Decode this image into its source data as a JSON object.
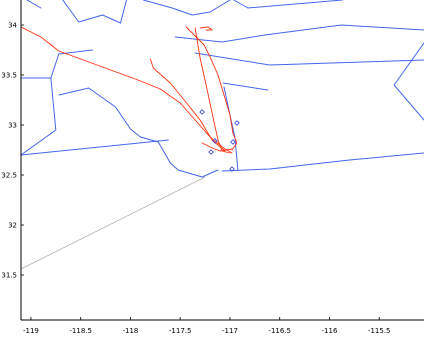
{
  "chart_data": {
    "type": "line",
    "title": "",
    "xlabel": "",
    "ylabel": "",
    "xlim": [
      -119.1,
      -115.05
    ],
    "ylim": [
      31.05,
      34.25
    ],
    "grid": false,
    "x_ticks": [
      {
        "value": -119,
        "label": "-119"
      },
      {
        "value": -118.5,
        "label": "-118.5"
      },
      {
        "value": -118,
        "label": "-118"
      },
      {
        "value": -117.5,
        "label": "-117.5"
      },
      {
        "value": -117,
        "label": "-117"
      },
      {
        "value": -116.5,
        "label": "-116.5"
      },
      {
        "value": -116,
        "label": "-116"
      },
      {
        "value": -115.5,
        "label": "-115.5"
      }
    ],
    "y_ticks": [
      {
        "value": 34,
        "label": "34"
      },
      {
        "value": 33.5,
        "label": "33.5"
      },
      {
        "value": 33,
        "label": "33"
      },
      {
        "value": 32.5,
        "label": "32.5"
      },
      {
        "value": 32,
        "label": "32"
      },
      {
        "value": 31.5,
        "label": "31.5"
      }
    ],
    "colors": {
      "boundaries": "#4466ee",
      "tracks": "#ff3311",
      "markers": "#3344dd",
      "reference": "#b0b0b0",
      "axes": "#000000"
    },
    "reference_lines": [
      [
        [
          -119.1,
          31.56
        ],
        [
          -117.25,
          32.48
        ]
      ]
    ],
    "boundaries": [
      [
        [
          -118.68,
          34.25
        ],
        [
          -118.52,
          34.03
        ],
        [
          -118.28,
          34.1
        ],
        [
          -118.1,
          34.02
        ],
        [
          -118.04,
          34.25
        ]
      ],
      [
        [
          -119.04,
          34.25
        ],
        [
          -118.9,
          34.17
        ]
      ],
      [
        [
          -117.87,
          34.25
        ],
        [
          -117.58,
          34.17
        ],
        [
          -117.38,
          34.1
        ],
        [
          -117.2,
          34.13
        ],
        [
          -117.0,
          34.25
        ]
      ],
      [
        [
          -116.96,
          34.25
        ],
        [
          -116.82,
          34.17
        ],
        [
          -115.87,
          34.25
        ]
      ],
      [
        [
          -117.55,
          33.88
        ],
        [
          -117.08,
          33.83
        ],
        [
          -116.65,
          33.9
        ],
        [
          -115.88,
          34.0
        ],
        [
          -115.05,
          33.95
        ]
      ],
      [
        [
          -117.35,
          33.72
        ],
        [
          -116.6,
          33.6
        ],
        [
          -115.05,
          33.65
        ]
      ],
      [
        [
          -117.07,
          33.42
        ],
        [
          -116.62,
          33.35
        ]
      ],
      [
        [
          -115.05,
          33.82
        ],
        [
          -115.35,
          33.4
        ],
        [
          -115.05,
          33.05
        ]
      ],
      [
        [
          -119.1,
          33.47
        ],
        [
          -118.8,
          33.47
        ],
        [
          -118.72,
          33.71
        ],
        [
          -118.38,
          33.75
        ]
      ],
      [
        [
          -118.8,
          33.47
        ],
        [
          -118.75,
          32.95
        ],
        [
          -119.1,
          32.7
        ]
      ],
      [
        [
          -118.72,
          33.3
        ],
        [
          -118.42,
          33.37
        ],
        [
          -118.15,
          33.18
        ],
        [
          -118.0,
          32.96
        ],
        [
          -117.9,
          32.88
        ],
        [
          -117.72,
          32.83
        ],
        [
          -117.6,
          32.62
        ],
        [
          -117.52,
          32.55
        ],
        [
          -117.28,
          32.48
        ],
        [
          -117.12,
          32.55
        ]
      ],
      [
        [
          -119.1,
          32.7
        ],
        [
          -117.62,
          32.85
        ]
      ],
      [
        [
          -117.06,
          33.38
        ],
        [
          -117.0,
          33.1
        ],
        [
          -116.95,
          32.88
        ],
        [
          -116.92,
          32.55
        ]
      ],
      [
        [
          -117.08,
          32.54
        ],
        [
          -116.6,
          32.56
        ],
        [
          -115.8,
          32.65
        ],
        [
          -115.05,
          32.72
        ]
      ]
    ],
    "tracks": [
      [
        [
          -119.1,
          33.98
        ],
        [
          -118.9,
          33.88
        ],
        [
          -118.72,
          33.74
        ],
        [
          -118.5,
          33.66
        ],
        [
          -118.2,
          33.55
        ],
        [
          -117.95,
          33.46
        ],
        [
          -117.7,
          33.36
        ],
        [
          -117.5,
          33.22
        ],
        [
          -117.35,
          33.05
        ],
        [
          -117.2,
          32.88
        ],
        [
          -117.05,
          32.76
        ],
        [
          -116.98,
          32.72
        ]
      ],
      [
        [
          -117.8,
          33.66
        ],
        [
          -117.77,
          33.57
        ],
        [
          -117.6,
          33.42
        ],
        [
          -117.42,
          33.2
        ],
        [
          -117.3,
          33.05
        ],
        [
          -117.18,
          32.85
        ],
        [
          -117.05,
          32.74
        ]
      ],
      [
        [
          -117.44,
          33.98
        ],
        [
          -117.38,
          33.92
        ],
        [
          -117.26,
          33.8
        ],
        [
          -117.2,
          33.68
        ],
        [
          -117.12,
          33.5
        ],
        [
          -117.06,
          33.3
        ],
        [
          -117.0,
          33.1
        ],
        [
          -116.97,
          32.92
        ],
        [
          -116.93,
          32.82
        ],
        [
          -116.98,
          32.75
        ]
      ],
      [
        [
          -117.35,
          33.97
        ],
        [
          -117.3,
          33.67
        ],
        [
          -117.24,
          33.4
        ],
        [
          -117.18,
          33.12
        ],
        [
          -117.12,
          32.85
        ],
        [
          -117.08,
          32.74
        ],
        [
          -117.0,
          32.72
        ]
      ],
      [
        [
          -117.3,
          33.97
        ],
        [
          -117.22,
          33.98
        ],
        [
          -117.18,
          33.95
        ],
        [
          -117.24,
          33.95
        ]
      ],
      [
        [
          -117.28,
          32.82
        ],
        [
          -117.2,
          32.78
        ],
        [
          -117.1,
          32.74
        ],
        [
          -116.98,
          32.76
        ]
      ]
    ],
    "markers": [
      {
        "x": -117.28,
        "y": 33.13
      },
      {
        "x": -116.93,
        "y": 33.02
      },
      {
        "x": -117.15,
        "y": 32.84
      },
      {
        "x": -116.97,
        "y": 32.83
      },
      {
        "x": -117.19,
        "y": 32.73
      },
      {
        "x": -116.98,
        "y": 32.56
      }
    ]
  }
}
